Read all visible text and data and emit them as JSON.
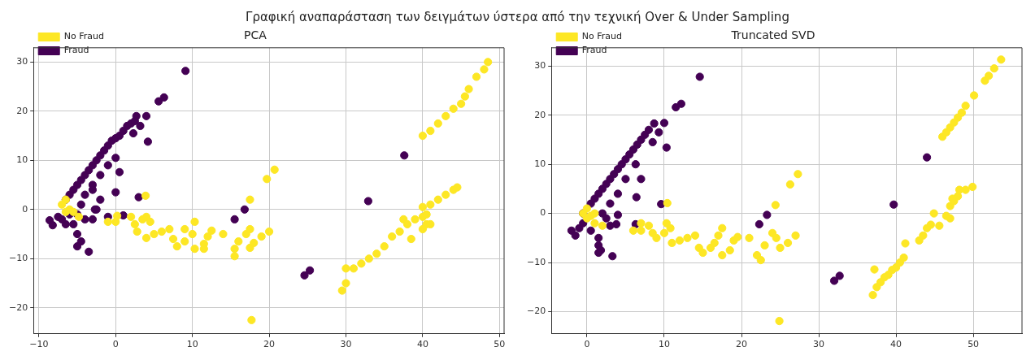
{
  "chart_data": [
    {
      "type": "other",
      "title": "Γραφική αναπαράσταση των δειγμάτων ύστερα από την τεχνική Over & Under Sampling"
    },
    {
      "type": "scatter",
      "title": "PCA",
      "xlim": [
        -10.7,
        50.6
      ],
      "ylim": [
        -25.3,
        32.9
      ],
      "xticks": [
        -10,
        0,
        10,
        20,
        30,
        40,
        50
      ],
      "yticks": [
        -20,
        -10,
        0,
        10,
        20,
        30
      ],
      "grid": true,
      "legend": "top left",
      "marker": "circle",
      "series": [
        {
          "name": "No Fraud",
          "color": "#fde725",
          "x": [
            -7,
            -6.5,
            -6,
            -5.5,
            -6.5,
            -4.8,
            -1,
            0,
            0.2,
            2,
            2.5,
            2.8,
            3.5,
            4,
            3.9,
            4.5,
            4,
            5,
            6,
            7,
            7.5,
            8,
            9,
            9,
            10,
            10.3,
            10.3,
            11.5,
            11.5,
            12,
            12.5,
            14,
            15.5,
            15.5,
            16,
            17,
            17.5,
            17.5,
            17.5,
            18,
            19,
            20,
            19.7,
            20.7,
            17.7,
            29.5,
            30,
            30,
            31,
            32,
            33,
            34,
            35,
            36,
            37,
            37.5,
            38,
            39,
            40,
            40,
            40,
            40.5,
            41,
            42,
            43,
            44,
            44.5,
            38.5,
            40.5,
            41,
            40,
            41,
            42,
            43,
            44,
            45,
            45.5,
            46,
            47,
            48,
            48.5
          ],
          "values": [
            1,
            2,
            0,
            -0.5,
            -0.5,
            -1.5,
            -2.5,
            -2.5,
            -1.3,
            -1.5,
            -3,
            -4.5,
            -2,
            -1.5,
            2.8,
            -2.5,
            -5.8,
            -5,
            -4.5,
            -4,
            -6,
            -7.5,
            -6.5,
            -4,
            -5,
            -2.5,
            -8,
            -7,
            -8,
            -5.5,
            -4.3,
            -5,
            -8,
            -9.5,
            -6.5,
            -5,
            -4,
            -7.8,
            2,
            -6.8,
            -5.5,
            -4.5,
            6.2,
            8.1,
            -22.5,
            -16.5,
            -15,
            -12,
            -12,
            -11,
            -10,
            -9,
            -7.5,
            -5.5,
            -4.5,
            -2,
            -3,
            -2,
            -4,
            -1.5,
            0.5,
            -1,
            1,
            2,
            3,
            4,
            4.5,
            -6,
            -3,
            -3,
            15,
            16,
            17.5,
            19,
            20.5,
            21.5,
            23,
            24.5,
            27,
            28.5,
            30
          ]
        },
        {
          "name": "Fraud",
          "color": "#440154",
          "x": [
            -8.6,
            -8.2,
            -7.5,
            -6.5,
            -6,
            -5.5,
            -5,
            -4.5,
            -4,
            -3.5,
            -3,
            -2.5,
            -2,
            -1.5,
            -1,
            -0.5,
            0,
            0.5,
            1,
            1.5,
            2,
            2.5,
            2.7,
            3.2,
            2.3,
            4,
            4.2,
            5.6,
            6.3,
            9.1,
            0,
            -1,
            -2,
            -3,
            -4,
            -4.5,
            -5,
            -5.5,
            -5,
            -4.5,
            -5,
            -3.5,
            -6.5,
            -4,
            -3,
            -2.5,
            0.5,
            0,
            3,
            -2.7,
            -1,
            1,
            16.8,
            15.5,
            24.6,
            25.3,
            32.9,
            37.6,
            -3,
            -2,
            -6,
            -7
          ],
          "values": [
            -2.2,
            -3.2,
            -1.5,
            2,
            3,
            4,
            5,
            6,
            7,
            8,
            9,
            10,
            11,
            12,
            13,
            14,
            14.5,
            15,
            16,
            17,
            17.5,
            18,
            19,
            17,
            15.5,
            19,
            13.8,
            22,
            22.8,
            28.2,
            10.5,
            9,
            7,
            5,
            3,
            1,
            -1,
            -3,
            -5,
            -6.5,
            -7.5,
            -8.6,
            -3,
            -2,
            -2,
            0,
            7.6,
            3.5,
            2.5,
            0,
            -1.5,
            -1.2,
            0,
            -2,
            -13.4,
            -12.4,
            1.7,
            11,
            4,
            2,
            -1,
            -2
          ]
        }
      ]
    },
    {
      "type": "scatter",
      "title": "Truncated SVD",
      "xlim": [
        -4.6,
        56.3
      ],
      "ylim": [
        -24.5,
        33.7
      ],
      "xticks": [
        0,
        10,
        20,
        30,
        40,
        50
      ],
      "yticks": [
        -20,
        -10,
        0,
        10,
        20,
        30
      ],
      "grid": true,
      "legend": "top left",
      "marker": "circle",
      "series": [
        {
          "name": "No Fraud",
          "color": "#fde725",
          "x": [
            -0.5,
            0,
            0.5,
            0,
            1,
            1,
            2,
            6,
            7,
            7,
            8,
            8.5,
            9,
            10,
            10.3,
            10.8,
            10.4,
            11,
            12,
            13,
            14,
            14.5,
            15,
            16,
            16.5,
            17,
            17.5,
            17.5,
            18.5,
            19,
            19.5,
            21,
            22,
            22.5,
            23,
            24,
            24.5,
            25,
            26,
            27,
            24.9,
            26.3,
            27.3,
            24.4,
            37,
            37.5,
            38,
            38.5,
            39,
            39.5,
            40,
            40.5,
            41,
            41.2,
            37.2,
            43,
            43.5,
            44,
            44.5,
            44.9,
            45.6,
            46.5,
            47,
            47,
            47.5,
            48,
            48.2,
            49,
            49.9,
            47.3,
            46,
            46.5,
            47,
            47.5,
            48,
            48.5,
            49,
            50.1,
            51.5,
            52,
            52.7,
            53.6
          ],
          "values": [
            0,
            1,
            -0.5,
            -1,
            0,
            -2,
            -2.5,
            -3.5,
            -3.5,
            -2,
            -2.5,
            -4,
            -5,
            -4,
            -2,
            -3,
            2.1,
            -6,
            -5.5,
            -5,
            -4.5,
            -7,
            -8,
            -7,
            -6,
            -4.5,
            -8.5,
            -3,
            -7.5,
            -5.5,
            -4.8,
            -5,
            -8.5,
            -9.5,
            -6.5,
            -4,
            -5,
            -7,
            -6,
            -4.5,
            -21.9,
            5.9,
            8,
            1.7,
            -16.6,
            -15,
            -14,
            -13,
            -12.5,
            -11.5,
            -11,
            -10,
            -9,
            -6.1,
            -11.4,
            -5.5,
            -4.5,
            -3,
            -2.3,
            0,
            -2.5,
            -0.5,
            -1,
            1.5,
            2.5,
            3.5,
            4.8,
            4.8,
            5.4,
            3,
            15.6,
            16.5,
            17.5,
            18.5,
            19.5,
            20.5,
            21.9,
            24,
            27,
            28,
            29.5,
            31.3
          ]
        },
        {
          "name": "Fraud",
          "color": "#440154",
          "x": [
            -2,
            -1.5,
            -1,
            -0.5,
            0.5,
            1,
            1.5,
            2,
            2.5,
            3,
            3.5,
            4,
            4.5,
            5,
            5.5,
            6,
            6.5,
            7,
            7.5,
            8,
            8.7,
            9.3,
            8.5,
            10,
            10.3,
            11.5,
            12.2,
            14.6,
            6.3,
            5,
            4,
            3,
            2,
            2.5,
            1.5,
            1.5,
            1.8,
            1.5,
            3.3,
            -0.5,
            0.5,
            3,
            4,
            3.8,
            7,
            6.4,
            9.6,
            6.3,
            22.3,
            23.3,
            32,
            32.7,
            39.7,
            44
          ],
          "values": [
            -3.5,
            -4.5,
            -3,
            0,
            2,
            3,
            4,
            5,
            6,
            7,
            8,
            9,
            10,
            11,
            12,
            13,
            14,
            15,
            16,
            17,
            18.3,
            16.5,
            14.5,
            18.4,
            13.4,
            21.6,
            22.3,
            27.8,
            10,
            7,
            4,
            2,
            0,
            -1,
            -5,
            -6.5,
            -7.5,
            -8,
            -8.7,
            -2,
            -3.5,
            -2.5,
            -0.3,
            -2.2,
            7,
            3.3,
            1.9,
            -2.2,
            -2.2,
            -0.3,
            -13.7,
            -12.7,
            1.8,
            11.4
          ]
        }
      ]
    }
  ]
}
